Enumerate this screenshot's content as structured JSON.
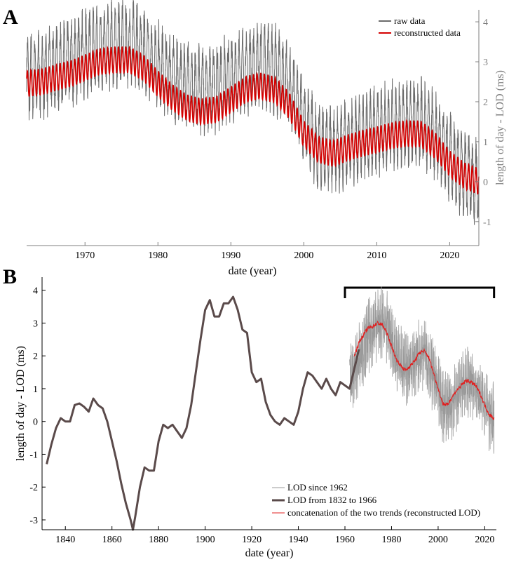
{
  "chart_data": [
    {
      "panel": "A",
      "type": "line",
      "title": "",
      "xlabel": "date (year)",
      "ylabel": "length of day - LOD (ms)",
      "xlim": [
        1962,
        2024
      ],
      "ylim": [
        -1.6,
        4.3
      ],
      "xticks": [
        1970,
        1980,
        1990,
        2000,
        2010,
        2020
      ],
      "yticks": [
        -1,
        0,
        1,
        2,
        3,
        4
      ],
      "y_axis_side": "right",
      "legend_position": "top-right",
      "colors": {
        "raw": "#6b6b6b",
        "reconstructed": "#d40000",
        "axis": "#7f7f7f"
      },
      "series": [
        {
          "name": "raw data",
          "trend_x": [
            1962,
            1964,
            1966,
            1968,
            1970,
            1972,
            1974,
            1976,
            1978,
            1980,
            1982,
            1984,
            1986,
            1988,
            1990,
            1992,
            1994,
            1996,
            1998,
            2000,
            2002,
            2004,
            2006,
            2008,
            2010,
            2012,
            2014,
            2016,
            2018,
            2020,
            2022,
            2024
          ],
          "trend_y": [
            2.6,
            2.7,
            2.85,
            3.0,
            3.2,
            3.35,
            3.45,
            3.5,
            3.3,
            2.9,
            2.6,
            2.4,
            2.3,
            2.35,
            2.6,
            2.8,
            2.9,
            2.8,
            2.4,
            1.5,
            0.9,
            0.8,
            1.0,
            1.1,
            1.25,
            1.4,
            1.45,
            1.5,
            1.2,
            0.6,
            0.2,
            0.0
          ],
          "seasonal_amplitude": 0.85,
          "noise_amplitude": 0.35
        },
        {
          "name": "reconstructed data",
          "trend_x": [
            1962,
            1964,
            1966,
            1968,
            1970,
            1972,
            1974,
            1976,
            1978,
            1980,
            1982,
            1984,
            1986,
            1988,
            1990,
            1992,
            1994,
            1996,
            1998,
            2000,
            2002,
            2004,
            2006,
            2008,
            2010,
            2012,
            2014,
            2016,
            2018,
            2020,
            2022,
            2024
          ],
          "trend_y": [
            2.45,
            2.5,
            2.6,
            2.7,
            2.85,
            3.0,
            3.05,
            3.05,
            2.85,
            2.45,
            2.1,
            1.85,
            1.75,
            1.8,
            2.05,
            2.3,
            2.4,
            2.3,
            1.9,
            1.2,
            0.8,
            0.7,
            0.85,
            0.95,
            1.05,
            1.15,
            1.2,
            1.2,
            0.9,
            0.45,
            0.15,
            0.0
          ],
          "seasonal_amplitude": 0.33
        }
      ]
    },
    {
      "panel": "B",
      "type": "line",
      "title": "",
      "xlabel": "date (year)",
      "ylabel": "length of day - LOD (ms)",
      "xlim": [
        1830,
        2025
      ],
      "ylim": [
        -3.3,
        4.4
      ],
      "xticks": [
        1840,
        1860,
        1880,
        1900,
        1920,
        1940,
        1960,
        1980,
        2000,
        2020
      ],
      "yticks": [
        -3,
        -2,
        -1,
        0,
        1,
        2,
        3,
        4
      ],
      "y_axis_side": "left",
      "legend_position": "bottom-right",
      "bracket_range": [
        1960,
        2024
      ],
      "colors": {
        "since1962": "#9a9a9a",
        "historical": "#5a4a4a",
        "concatenation": "#e02020"
      },
      "series": [
        {
          "name": "LOD since 1962",
          "trend_x": [
            1962,
            1966,
            1970,
            1974,
            1978,
            1982,
            1986,
            1990,
            1994,
            1998,
            2002,
            2006,
            2010,
            2014,
            2018,
            2022,
            2024
          ],
          "trend_y": [
            1.3,
            1.9,
            2.6,
            3.0,
            2.9,
            2.0,
            1.6,
            1.8,
            2.15,
            1.4,
            0.5,
            0.6,
            1.0,
            1.2,
            0.8,
            0.2,
            0.1
          ],
          "noise_amplitude": 1.05
        },
        {
          "name": "LOD from 1832 to 1966",
          "x": [
            1832,
            1834,
            1836,
            1838,
            1840,
            1842,
            1844,
            1846,
            1848,
            1850,
            1852,
            1854,
            1856,
            1858,
            1860,
            1862,
            1864,
            1866,
            1868,
            1869,
            1870,
            1872,
            1874,
            1876,
            1878,
            1880,
            1882,
            1884,
            1886,
            1888,
            1890,
            1892,
            1894,
            1896,
            1898,
            1900,
            1902,
            1904,
            1906,
            1908,
            1910,
            1912,
            1914,
            1916,
            1918,
            1920,
            1922,
            1924,
            1926,
            1928,
            1930,
            1932,
            1934,
            1936,
            1938,
            1940,
            1942,
            1944,
            1946,
            1948,
            1950,
            1952,
            1954,
            1956,
            1958,
            1960,
            1962,
            1964,
            1966
          ],
          "y": [
            -1.3,
            -0.7,
            -0.2,
            0.1,
            0.0,
            0.0,
            0.5,
            0.55,
            0.45,
            0.3,
            0.7,
            0.5,
            0.4,
            0.0,
            -0.6,
            -1.2,
            -1.9,
            -2.5,
            -3.0,
            -3.3,
            -2.9,
            -2.0,
            -1.4,
            -1.5,
            -1.5,
            -0.6,
            -0.1,
            -0.2,
            -0.1,
            -0.3,
            -0.5,
            -0.2,
            0.5,
            1.5,
            2.5,
            3.4,
            3.7,
            3.2,
            3.2,
            3.6,
            3.6,
            3.8,
            3.4,
            2.8,
            2.7,
            1.5,
            1.2,
            1.3,
            0.6,
            0.2,
            0.0,
            -0.1,
            0.1,
            0.0,
            -0.1,
            0.3,
            1.0,
            1.5,
            1.4,
            1.2,
            1.0,
            1.3,
            1.0,
            0.8,
            1.2,
            1.1,
            1.0,
            1.6,
            2.2
          ]
        },
        {
          "name": "concatenation of the two trends (reconstructed LOD)",
          "x": [
            1964,
            1966,
            1968,
            1970,
            1972,
            1974,
            1976,
            1978,
            1980,
            1982,
            1984,
            1986,
            1988,
            1990,
            1992,
            1994,
            1996,
            1998,
            2000,
            2002,
            2004,
            2006,
            2008,
            2010,
            2012,
            2014,
            2016,
            2018,
            2020,
            2022,
            2024
          ],
          "y": [
            2.0,
            2.4,
            2.65,
            2.85,
            2.9,
            3.0,
            2.95,
            2.7,
            2.3,
            1.9,
            1.7,
            1.55,
            1.7,
            1.85,
            2.1,
            2.15,
            1.95,
            1.5,
            1.0,
            0.55,
            0.5,
            0.75,
            0.95,
            1.1,
            1.25,
            1.2,
            1.1,
            0.85,
            0.5,
            0.2,
            0.1
          ]
        }
      ]
    }
  ]
}
